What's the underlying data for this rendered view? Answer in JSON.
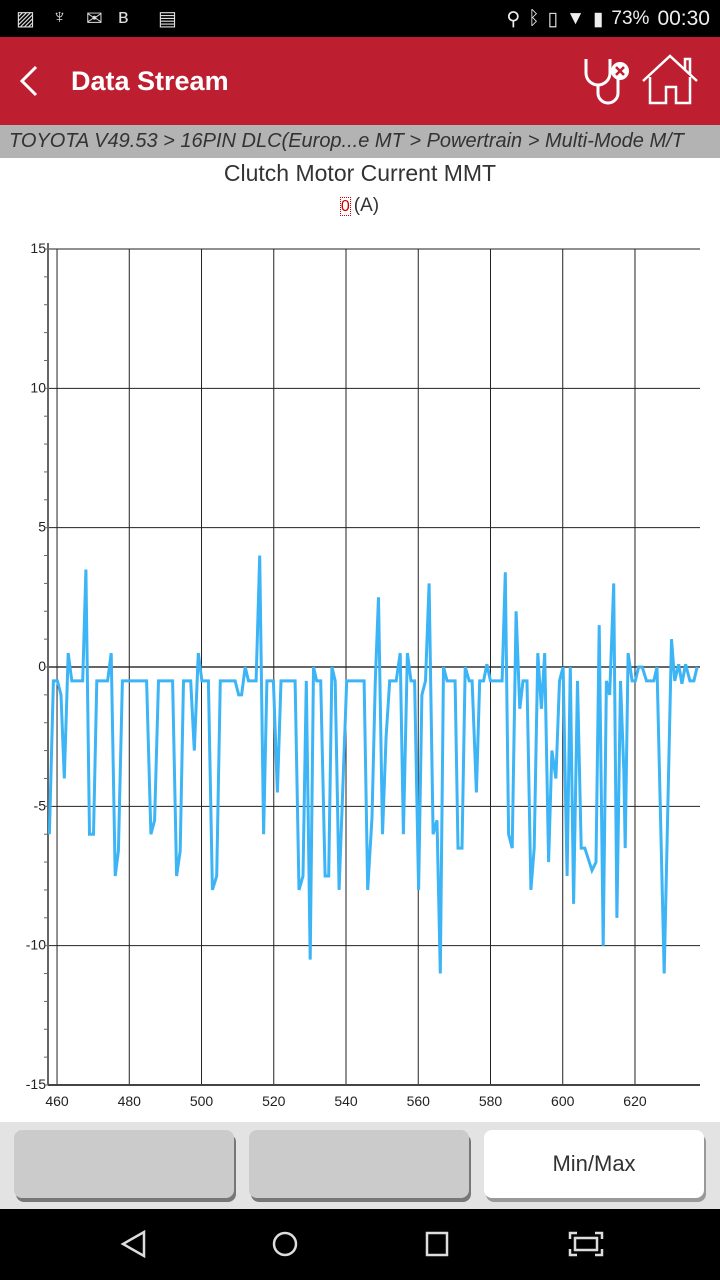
{
  "status_bar": {
    "battery": "73%",
    "time": "00:30"
  },
  "header": {
    "title": "Data Stream"
  },
  "breadcrumb": "TOYOTA V49.53 > 16PIN DLC(Europ...e MT > Powertrain > Multi-Mode M/T",
  "chart_header": {
    "title": "Clutch Motor Current MMT",
    "value": "0",
    "unit": "(A)"
  },
  "buttons": {
    "b1": "",
    "b2": "",
    "minmax": "Min/Max"
  },
  "colors": {
    "accent": "#bd1f31",
    "series": "#3cb4f5"
  },
  "chart_data": {
    "type": "line",
    "title": "Clutch Motor Current MMT",
    "xlim": [
      457.5,
      638
    ],
    "ylim": [
      -15,
      15
    ],
    "xticks": [
      460,
      480,
      500,
      520,
      540,
      560,
      580,
      600,
      620
    ],
    "yticks": [
      -15,
      -10,
      -5,
      0,
      5,
      10,
      15
    ],
    "grid": true,
    "series": [
      {
        "x": [
          457.9,
          459.0,
          460.1,
          461.1,
          462.0,
          463.1,
          464.1,
          467.1,
          468.0,
          469.0,
          470.1,
          471.0,
          474.0,
          475.0,
          476.1,
          477.0,
          478.1,
          484.8,
          486.0,
          487.0,
          488.1,
          492.0,
          493.1,
          494.1,
          495.0,
          497.0,
          498.0,
          499.1,
          500.1,
          501.9,
          503.0,
          504.2,
          505.2,
          509.3,
          510.3,
          511.1,
          512.1,
          513.0,
          515.1,
          516.1,
          517.2,
          518.1,
          519.9,
          521.0,
          522.0,
          525.9,
          527.0,
          528.1,
          529.0,
          530.1,
          531.0,
          531.9,
          533.0,
          534.2,
          535.2,
          536.1,
          537.0,
          538.1,
          540.2,
          543.9,
          545.0,
          546.0,
          547.2,
          548.1,
          549.0,
          550.1,
          551.1,
          552.1,
          553.9,
          555.0,
          555.9,
          557.0,
          558.0,
          559.0,
          560.1,
          561.0,
          562.0,
          563.0,
          564.1,
          565.2,
          566.1,
          567.0,
          568.0,
          570.2,
          571.0,
          572.1,
          573.0,
          574.1,
          574.9,
          576.1,
          577.0,
          578.1,
          579.0,
          580.0,
          583.2,
          584.1,
          585.0,
          586.0,
          587.1,
          588.1,
          589.0,
          590.1,
          591.2,
          592.1,
          593.1,
          594.1,
          595.0,
          596.1,
          597.0,
          598.1,
          599.1,
          600.1,
          601.2,
          602.1,
          603.0,
          604.1,
          605.1,
          606.1,
          608.1,
          609.2,
          610.1,
          611.2,
          612.1,
          613.0,
          614.1,
          615.0,
          616.0,
          616.9,
          617.3,
          618.1,
          619.2,
          620.1,
          621.0,
          622.0,
          623.2,
          625.2,
          626.1,
          628.1,
          630.1,
          631.0,
          632.1,
          633.0,
          634.0,
          635.2,
          636.3,
          637.2
        ],
        "y": [
          -6.0,
          -0.5,
          -0.5,
          -1.0,
          -4.0,
          0.5,
          -0.5,
          -0.5,
          3.5,
          -6.0,
          -6.0,
          -0.5,
          -0.5,
          0.5,
          -7.5,
          -6.6,
          -0.5,
          -0.5,
          -6.0,
          -5.5,
          -0.5,
          -0.5,
          -7.5,
          -6.6,
          -0.5,
          -0.5,
          -3.0,
          0.5,
          -0.5,
          -0.5,
          -8.0,
          -7.5,
          -0.5,
          -0.5,
          -1.0,
          -1.0,
          0,
          -0.5,
          -0.5,
          4.0,
          -6.0,
          -0.5,
          -0.5,
          -4.5,
          -0.5,
          -0.5,
          -8.0,
          -7.5,
          -0.5,
          -10.5,
          0,
          -0.5,
          -0.5,
          -7.5,
          -7.5,
          0,
          -0.5,
          -8.0,
          -0.5,
          -0.5,
          -0.5,
          -8.0,
          -5.4,
          -0.5,
          2.5,
          -6.0,
          -2.5,
          -0.5,
          -0.5,
          0.5,
          -6.0,
          0.5,
          -0.5,
          -0.5,
          -8.0,
          -1.0,
          -0.5,
          3.0,
          -6.0,
          -5.5,
          -11.0,
          0,
          -0.5,
          -0.5,
          -6.5,
          -6.5,
          0,
          -0.5,
          -0.5,
          -4.5,
          -0.5,
          -0.5,
          0.1,
          -0.5,
          -0.5,
          3.4,
          -6.0,
          -6.5,
          2.0,
          -1.5,
          -0.5,
          -0.5,
          -8.0,
          -6.5,
          0.5,
          -1.5,
          0.5,
          -7.0,
          -3.0,
          -4.0,
          -0.5,
          0,
          -7.5,
          0,
          -8.5,
          -0.5,
          -6.5,
          -6.5,
          -7.3,
          -7.0,
          1.5,
          -10.0,
          -0.5,
          -1.0,
          3.0,
          -9.0,
          -0.5,
          -3.7,
          -6.5,
          0.5,
          -0.5,
          -0.5,
          0,
          0,
          -0.5,
          -0.5,
          0,
          -11.0,
          1.0,
          -0.5,
          0.1,
          -0.6,
          0.1,
          -0.5,
          -0.5,
          0
        ]
      }
    ]
  }
}
